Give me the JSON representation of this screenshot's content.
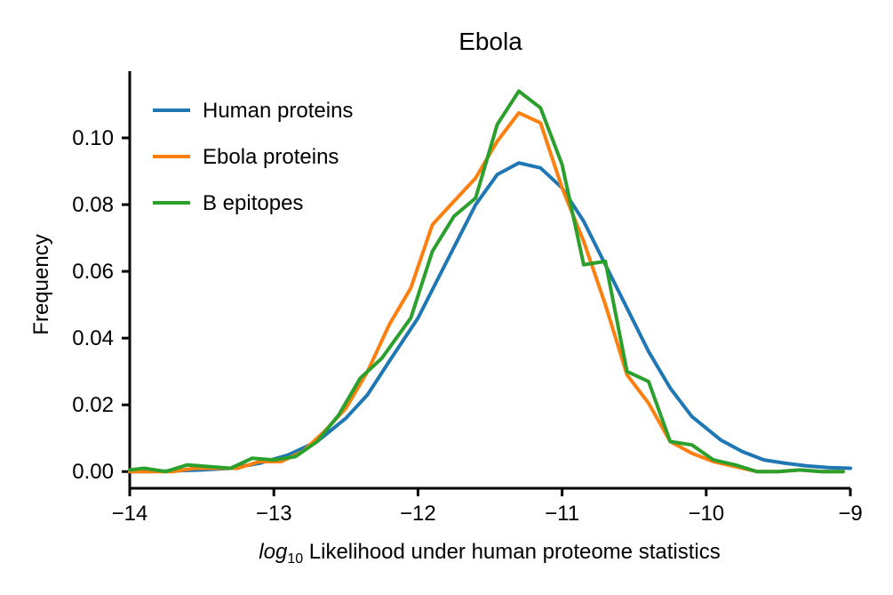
{
  "chart_data": {
    "type": "line",
    "title": "Ebola",
    "xlabel_italic": "log",
    "xlabel_sub": "10",
    "xlabel_rest": " Likelihood under human proteome statistics",
    "ylabel": "Frequency",
    "xlim": [
      -14,
      -9
    ],
    "ylim": [
      -0.005,
      0.12
    ],
    "xticks": [
      -14,
      -13,
      -12,
      -11,
      -10,
      -9
    ],
    "xtick_labels": [
      "−14",
      "−13",
      "−12",
      "−11",
      "−10",
      "−9"
    ],
    "yticks": [
      0.0,
      0.02,
      0.04,
      0.06,
      0.08,
      0.1
    ],
    "ytick_labels": [
      "0.00",
      "0.02",
      "0.04",
      "0.06",
      "0.08",
      "0.10"
    ],
    "grid": false,
    "legend_position": "top-left",
    "series": [
      {
        "name": "Human proteins",
        "color": "#1f77b4",
        "x": [
          -14.0,
          -13.9,
          -13.7,
          -13.5,
          -13.3,
          -13.1,
          -12.9,
          -12.7,
          -12.5,
          -12.35,
          -12.2,
          -12.0,
          -11.8,
          -11.6,
          -11.45,
          -11.3,
          -11.15,
          -11.0,
          -10.85,
          -10.7,
          -10.55,
          -10.4,
          -10.25,
          -10.1,
          -9.9,
          -9.75,
          -9.6,
          -9.45,
          -9.3,
          -9.15,
          -9.0
        ],
        "y": [
          0.0,
          0.0,
          0.0002,
          0.0005,
          0.001,
          0.0025,
          0.005,
          0.009,
          0.016,
          0.023,
          0.033,
          0.046,
          0.063,
          0.08,
          0.089,
          0.0925,
          0.091,
          0.085,
          0.075,
          0.062,
          0.049,
          0.036,
          0.025,
          0.0165,
          0.0095,
          0.006,
          0.0035,
          0.0025,
          0.0017,
          0.0012,
          0.001
        ]
      },
      {
        "name": "Ebola proteins",
        "color": "#ff7f0e",
        "x": [
          -14.0,
          -13.85,
          -13.7,
          -13.55,
          -13.4,
          -13.25,
          -13.1,
          -12.95,
          -12.8,
          -12.65,
          -12.5,
          -12.35,
          -12.2,
          -12.05,
          -11.9,
          -11.75,
          -11.6,
          -11.45,
          -11.3,
          -11.15,
          -11.0,
          -10.85,
          -10.7,
          -10.55,
          -10.4,
          -10.25,
          -10.1,
          -9.95,
          -9.8,
          -9.65,
          -9.5,
          -9.35,
          -9.2,
          -9.05
        ],
        "y": [
          0.0,
          0.0,
          0.0,
          0.001,
          0.001,
          0.001,
          0.003,
          0.003,
          0.006,
          0.012,
          0.019,
          0.03,
          0.044,
          0.055,
          0.074,
          0.081,
          0.088,
          0.099,
          0.1075,
          0.1045,
          0.085,
          0.069,
          0.05,
          0.029,
          0.0205,
          0.009,
          0.0055,
          0.003,
          0.0015,
          0.0,
          0.0,
          0.0005,
          0.0,
          0.0
        ]
      },
      {
        "name": "B epitopes",
        "color": "#2ca02c",
        "x": [
          -14.0,
          -13.9,
          -13.75,
          -13.6,
          -13.45,
          -13.3,
          -13.15,
          -13.0,
          -12.85,
          -12.7,
          -12.55,
          -12.4,
          -12.25,
          -12.05,
          -11.9,
          -11.75,
          -11.6,
          -11.45,
          -11.3,
          -11.15,
          -11.0,
          -10.85,
          -10.7,
          -10.55,
          -10.4,
          -10.25,
          -10.1,
          -9.95,
          -9.8,
          -9.65,
          -9.5,
          -9.35,
          -9.2,
          -9.05
        ],
        "y": [
          0.0005,
          0.001,
          0.0,
          0.002,
          0.0015,
          0.001,
          0.004,
          0.0035,
          0.0045,
          0.009,
          0.017,
          0.028,
          0.034,
          0.046,
          0.066,
          0.0765,
          0.082,
          0.104,
          0.114,
          0.109,
          0.092,
          0.062,
          0.063,
          0.03,
          0.027,
          0.009,
          0.008,
          0.0035,
          0.002,
          0.0,
          0.0,
          0.0005,
          0.0,
          0.0
        ]
      }
    ]
  }
}
